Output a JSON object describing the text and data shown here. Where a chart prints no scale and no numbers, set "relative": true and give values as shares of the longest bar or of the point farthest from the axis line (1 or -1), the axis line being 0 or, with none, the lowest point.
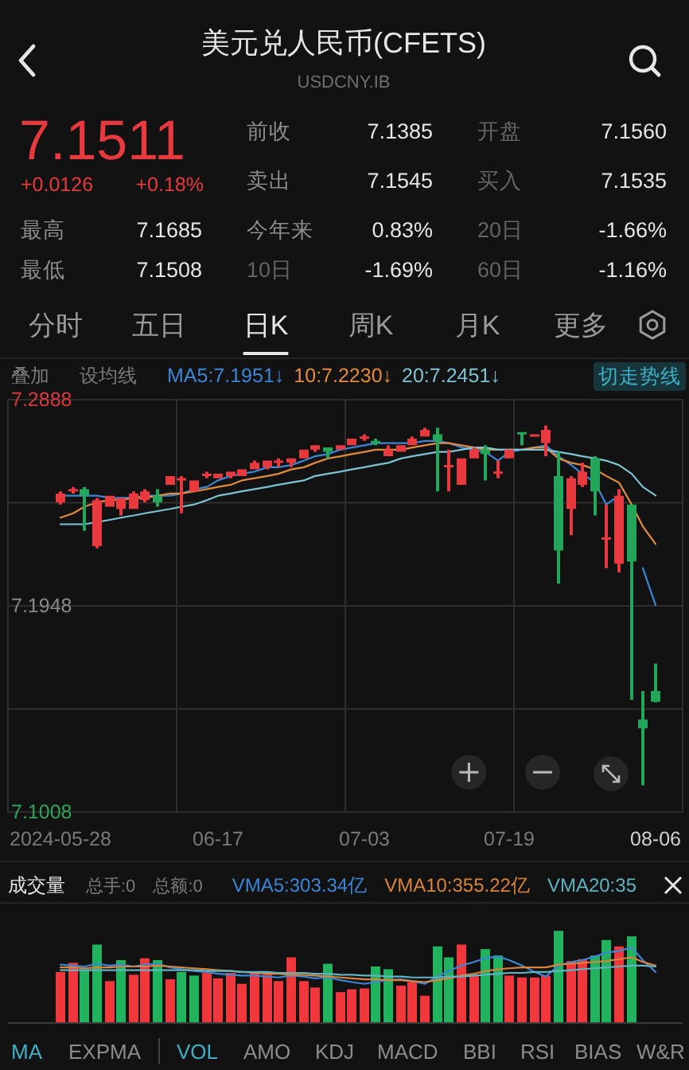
{
  "chart_data": [
    {
      "type": "other",
      "title": "美元兑人民币(CFETS)",
      "subtitle": "USDCNY.IB",
      "annotations": [
        "7.1511",
        "+0.0126",
        "+0.18%",
        "前收",
        "7.1385",
        "开盘",
        "7.1560",
        "卖出",
        "7.1545",
        "买入",
        "7.1535",
        "最高",
        "7.1685",
        "今年来",
        "0.83%",
        "20日",
        "-1.66%",
        "最低",
        "7.1508",
        "10日",
        "-1.69%",
        "60日",
        "-1.16%",
        "分时",
        "五日",
        "日K",
        "周K",
        "月K",
        "更多"
      ]
    },
    {
      "type": "candlestick",
      "categories": [
        "2024-05-28",
        null,
        null,
        null,
        null,
        null,
        null,
        null,
        null,
        null,
        null,
        null,
        null,
        "06-17",
        null,
        null,
        null,
        null,
        null,
        null,
        null,
        null,
        null,
        null,
        null,
        "07-03",
        null,
        null,
        null,
        null,
        null,
        null,
        null,
        null,
        null,
        null,
        null,
        "07-19",
        null,
        null,
        null,
        null,
        null,
        null,
        null,
        null,
        null,
        null,
        null,
        "08-06"
      ],
      "ohlc": [
        [
          7.242,
          7.247,
          7.241,
          7.246
        ],
        [
          7.247,
          7.249,
          7.246,
          7.248
        ],
        [
          7.248,
          7.249,
          7.229,
          7.245
        ],
        [
          7.222,
          7.244,
          7.221,
          7.243
        ],
        [
          7.24,
          7.245,
          7.24,
          7.245
        ],
        [
          7.239,
          7.244,
          7.236,
          7.244
        ],
        [
          7.239,
          7.247,
          7.239,
          7.246
        ],
        [
          7.243,
          7.248,
          7.242,
          7.247
        ],
        [
          7.245,
          7.248,
          7.24,
          7.242
        ],
        [
          7.25,
          7.254,
          7.25,
          7.254
        ],
        [
          7.252,
          7.254,
          7.237,
          7.253
        ],
        [
          7.247,
          7.252,
          7.247,
          7.252
        ],
        [
          7.254,
          7.256,
          7.253,
          7.255
        ],
        [
          7.253,
          7.255,
          7.253,
          7.255
        ],
        [
          7.254,
          7.256,
          7.253,
          7.256
        ],
        [
          7.254,
          7.257,
          7.254,
          7.257
        ],
        [
          7.257,
          7.261,
          7.257,
          7.26
        ],
        [
          7.258,
          7.261,
          7.257,
          7.261
        ],
        [
          7.26,
          7.262,
          7.258,
          7.261
        ],
        [
          7.26,
          7.262,
          7.258,
          7.262
        ],
        [
          7.262,
          7.266,
          7.262,
          7.266
        ],
        [
          7.266,
          7.268,
          7.265,
          7.268
        ],
        [
          7.267,
          7.267,
          7.262,
          7.265
        ],
        [
          7.266,
          7.268,
          7.266,
          7.268
        ],
        [
          7.268,
          7.271,
          7.268,
          7.271
        ],
        [
          7.271,
          7.273,
          7.27,
          7.272
        ],
        [
          7.27,
          7.271,
          7.268,
          7.269
        ],
        [
          7.263,
          7.268,
          7.263,
          7.266
        ],
        [
          7.265,
          7.268,
          7.265,
          7.268
        ],
        [
          7.268,
          7.272,
          7.268,
          7.271
        ],
        [
          7.272,
          7.276,
          7.272,
          7.275
        ],
        [
          7.273,
          7.276,
          7.247,
          7.27
        ],
        [
          7.258,
          7.266,
          7.247,
          7.259
        ],
        [
          7.25,
          7.262,
          7.25,
          7.262
        ],
        [
          7.262,
          7.267,
          7.262,
          7.266
        ],
        [
          7.266,
          7.268,
          7.252,
          7.264
        ],
        [
          7.255,
          7.261,
          7.253,
          7.256
        ],
        [
          7.262,
          7.266,
          7.262,
          7.266
        ],
        [
          7.274,
          7.274,
          7.268,
          7.273
        ],
        [
          7.272,
          7.273,
          7.272,
          7.273
        ],
        [
          7.269,
          7.277,
          7.263,
          7.275
        ],
        [
          7.254,
          7.265,
          7.205,
          7.22
        ],
        [
          7.239,
          7.254,
          7.227,
          7.253
        ],
        [
          7.25,
          7.26,
          7.249,
          7.256
        ],
        [
          7.262,
          7.263,
          7.236,
          7.247
        ],
        [
          7.225,
          7.241,
          7.212,
          7.226
        ],
        [
          7.214,
          7.248,
          7.21,
          7.245
        ],
        [
          7.241,
          7.241,
          7.152,
          7.215
        ],
        [
          7.143,
          7.156,
          7.113,
          7.139
        ],
        [
          7.156,
          7.1685,
          7.1508,
          7.1511
        ]
      ],
      "colors": [
        "#e8393e",
        "#e8393e",
        "#23a65a",
        "#e8393e",
        "#e8393e",
        "#e8393e",
        "#e8393e",
        "#e8393e",
        "#23a65a",
        "#e8393e",
        "#e8393e",
        "#e8393e",
        "#e8393e",
        "#e8393e",
        "#e8393e",
        "#e8393e",
        "#e8393e",
        "#e8393e",
        "#e8393e",
        "#e8393e",
        "#e8393e",
        "#e8393e",
        "#23a65a",
        "#e8393e",
        "#e8393e",
        "#e8393e",
        "#23a65a",
        "#e8393e",
        "#e8393e",
        "#e8393e",
        "#e8393e",
        "#23a65a",
        "#e8393e",
        "#e8393e",
        "#e8393e",
        "#23a65a",
        "#e8393e",
        "#e8393e",
        "#23a65a",
        "#e8393e",
        "#e8393e",
        "#23a65a",
        "#e8393e",
        "#e8393e",
        "#23a65a",
        "#e8393e",
        "#e8393e",
        "#23a65a",
        "#23a65a",
        "#23a65a"
      ],
      "series": [
        {
          "name": "MA5:7.1951↓",
          "type": "line",
          "color": "#3b86d6",
          "values": [
            7.245,
            7.245,
            7.245,
            7.245,
            7.244,
            7.244,
            7.244,
            7.245,
            7.245,
            7.245,
            7.246,
            7.248,
            7.249,
            7.252,
            7.254,
            7.255,
            7.256,
            7.258,
            7.258,
            7.259,
            7.261,
            7.263,
            7.264,
            7.266,
            7.267,
            7.268,
            7.269,
            7.269,
            7.269,
            7.269,
            7.27,
            7.27,
            7.269,
            7.267,
            7.266,
            7.265,
            7.261,
            7.265,
            7.266,
            7.267,
            7.268,
            7.263,
            7.259,
            7.255,
            7.251,
            7.241,
            7.245,
            null,
            7.212,
            7.1951
          ]
        },
        {
          "name": "10:7.2230↓",
          "type": "line",
          "color": "#e38b3c",
          "values": [
            7.235,
            7.237,
            7.24,
            7.242,
            7.243,
            7.243,
            7.244,
            7.244,
            7.245,
            7.246,
            7.246,
            7.247,
            7.248,
            7.249,
            7.25,
            7.252,
            7.253,
            7.254,
            7.255,
            7.257,
            7.258,
            7.26,
            7.262,
            7.263,
            7.264,
            7.265,
            7.266,
            7.266,
            7.266,
            7.267,
            7.268,
            7.269,
            7.269,
            7.268,
            7.267,
            7.266,
            7.266,
            7.266,
            7.266,
            7.267,
            7.267,
            7.262,
            7.26,
            7.259,
            7.257,
            7.254,
            7.251,
            7.241,
            7.231,
            7.223
          ]
        },
        {
          "name": "20:7.2451↓",
          "type": "line",
          "color": "#7cc3d3",
          "values": [
            7.232,
            7.232,
            7.232,
            7.233,
            7.234,
            7.235,
            7.236,
            7.237,
            7.238,
            7.239,
            7.24,
            7.241,
            7.243,
            7.245,
            7.246,
            7.247,
            7.248,
            7.249,
            7.25,
            7.251,
            7.252,
            7.254,
            7.255,
            7.256,
            7.257,
            7.258,
            7.259,
            7.26,
            7.262,
            7.263,
            7.264,
            7.265,
            7.265,
            7.266,
            7.267,
            7.267,
            7.266,
            7.266,
            7.266,
            7.266,
            7.266,
            7.265,
            7.264,
            7.263,
            7.262,
            7.261,
            7.259,
            7.255,
            7.249,
            7.2451
          ]
        }
      ],
      "ylim": [
        7.1008,
        7.2888
      ],
      "yticks": [
        7.2888,
        {
          "value": 7.2418,
          "label": null
        },
        7.1948,
        {
          "value": 7.1478,
          "label": null
        },
        7.1008
      ],
      "grid": true,
      "legend": "top left",
      "annotations": [
        "叠加",
        "设均线",
        "切走势线"
      ]
    },
    {
      "type": "bar",
      "relative": true,
      "title": "成交量",
      "categories": [
        null,
        null,
        null,
        null,
        null,
        null,
        null,
        null,
        null,
        null,
        null,
        null,
        null,
        null,
        null,
        null,
        null,
        null,
        null,
        null,
        null,
        null,
        null,
        null,
        null,
        null,
        null,
        null,
        null,
        null,
        null,
        null,
        null,
        null,
        null,
        null,
        null,
        null,
        null,
        null,
        null,
        null,
        null,
        null,
        null,
        null,
        null,
        null,
        null,
        null
      ],
      "series": [
        {
          "type": "bar",
          "values": [
            0.55,
            0.65,
            0.58,
            0.85,
            0.45,
            0.68,
            0.52,
            0.7,
            0.68,
            0.47,
            0.55,
            0.51,
            0.54,
            0.48,
            0.54,
            0.42,
            0.55,
            0.52,
            0.45,
            0.71,
            0.45,
            0.38,
            0.64,
            0.33,
            0.36,
            0.37,
            0.61,
            0.58,
            0.4,
            0.44,
            0.29,
            0.83,
            0.71,
            0.85,
            0.51,
            0.8,
            0.73,
            0.51,
            0.49,
            0.49,
            0.51,
            1,
            0.67,
            0.69,
            0.73,
            0.9,
            0.83,
            0.94,
            null,
            null
          ],
          "colors": [
            "#f0383c",
            "#f0383c",
            "#22b35e",
            "#22b35e",
            "#f0383c",
            "#22b35e",
            "#f0383c",
            "#f0383c",
            "#22b35e",
            "#f0383c",
            "#22b35e",
            "#22b35e",
            "#f0383c",
            "#f0383c",
            "#f0383c",
            "#f0383c",
            "#f0383c",
            "#f0383c",
            "#f0383c",
            "#f0383c",
            "#f0383c",
            "#f0383c",
            "#22b35e",
            "#f0383c",
            "#f0383c",
            "#f0383c",
            "#22b35e",
            "#22b35e",
            "#f0383c",
            "#f0383c",
            "#f0383c",
            "#22b35e",
            "#22b35e",
            "#f0383c",
            "#f0383c",
            "#22b35e",
            "#22b35e",
            "#f0383c",
            "#f0383c",
            "#f0383c",
            "#f0383c",
            "#22b35e",
            "#f0383c",
            "#f0383c",
            "#22b35e",
            "#22b35e",
            "#f0383c",
            "#22b35e",
            null,
            null
          ]
        },
        {
          "name": "VMA5:303.34亿",
          "type": "line",
          "color": "#3b86d6",
          "values": [
            0.63,
            0.62,
            0.61,
            0.64,
            0.62,
            0.63,
            0.61,
            0.63,
            0.64,
            0.6,
            0.58,
            0.56,
            0.55,
            0.53,
            0.52,
            0.51,
            0.51,
            0.5,
            0.49,
            0.51,
            0.5,
            0.48,
            0.49,
            0.46,
            0.44,
            0.42,
            0.44,
            0.46,
            0.47,
            0.45,
            0.42,
            0.5,
            0.56,
            0.62,
            0.66,
            0.7,
            0.72,
            0.68,
            0.62,
            0.55,
            0.5,
            0.62,
            0.66,
            0.68,
            0.72,
            0.76,
            0.78,
            0.82,
            0.68,
            0.55
          ]
        },
        {
          "name": "VMA10:355.22亿",
          "type": "line",
          "color": "#d9843a",
          "values": [
            0.6,
            0.6,
            0.59,
            0.6,
            0.6,
            0.61,
            0.61,
            0.61,
            0.62,
            0.61,
            0.6,
            0.59,
            0.58,
            0.57,
            0.56,
            0.55,
            0.54,
            0.53,
            0.53,
            0.52,
            0.52,
            0.51,
            0.5,
            0.49,
            0.48,
            0.47,
            0.47,
            0.46,
            0.46,
            0.45,
            0.44,
            0.46,
            0.48,
            0.51,
            0.53,
            0.56,
            0.58,
            0.59,
            0.6,
            0.6,
            0.6,
            0.63,
            0.64,
            0.65,
            0.66,
            0.67,
            0.69,
            0.71,
            0.66,
            0.62
          ]
        },
        {
          "name": "VMA20:35",
          "type": "line",
          "color": "#5fb3c3",
          "values": [
            0.57,
            0.57,
            0.57,
            0.57,
            0.57,
            0.57,
            0.57,
            0.57,
            0.57,
            0.57,
            0.57,
            0.57,
            0.56,
            0.56,
            0.56,
            0.55,
            0.55,
            0.55,
            0.54,
            0.54,
            0.54,
            0.53,
            0.53,
            0.52,
            0.52,
            0.51,
            0.51,
            0.5,
            0.5,
            0.49,
            0.49,
            0.49,
            0.5,
            0.5,
            0.51,
            0.52,
            0.53,
            0.54,
            0.54,
            0.55,
            0.55,
            0.56,
            0.57,
            0.58,
            0.59,
            0.6,
            0.61,
            0.62,
            0.62,
            0.61
          ]
        }
      ],
      "legend": "top right",
      "annotations": [
        "总手:0",
        "总额:0"
      ]
    },
    {
      "type": "other",
      "annotations": [
        "MA",
        "EXPMA",
        "VOL",
        "AMO",
        "KDJ",
        "MACD",
        "BBI",
        "RSI",
        "BIAS",
        "W&R"
      ]
    }
  ]
}
